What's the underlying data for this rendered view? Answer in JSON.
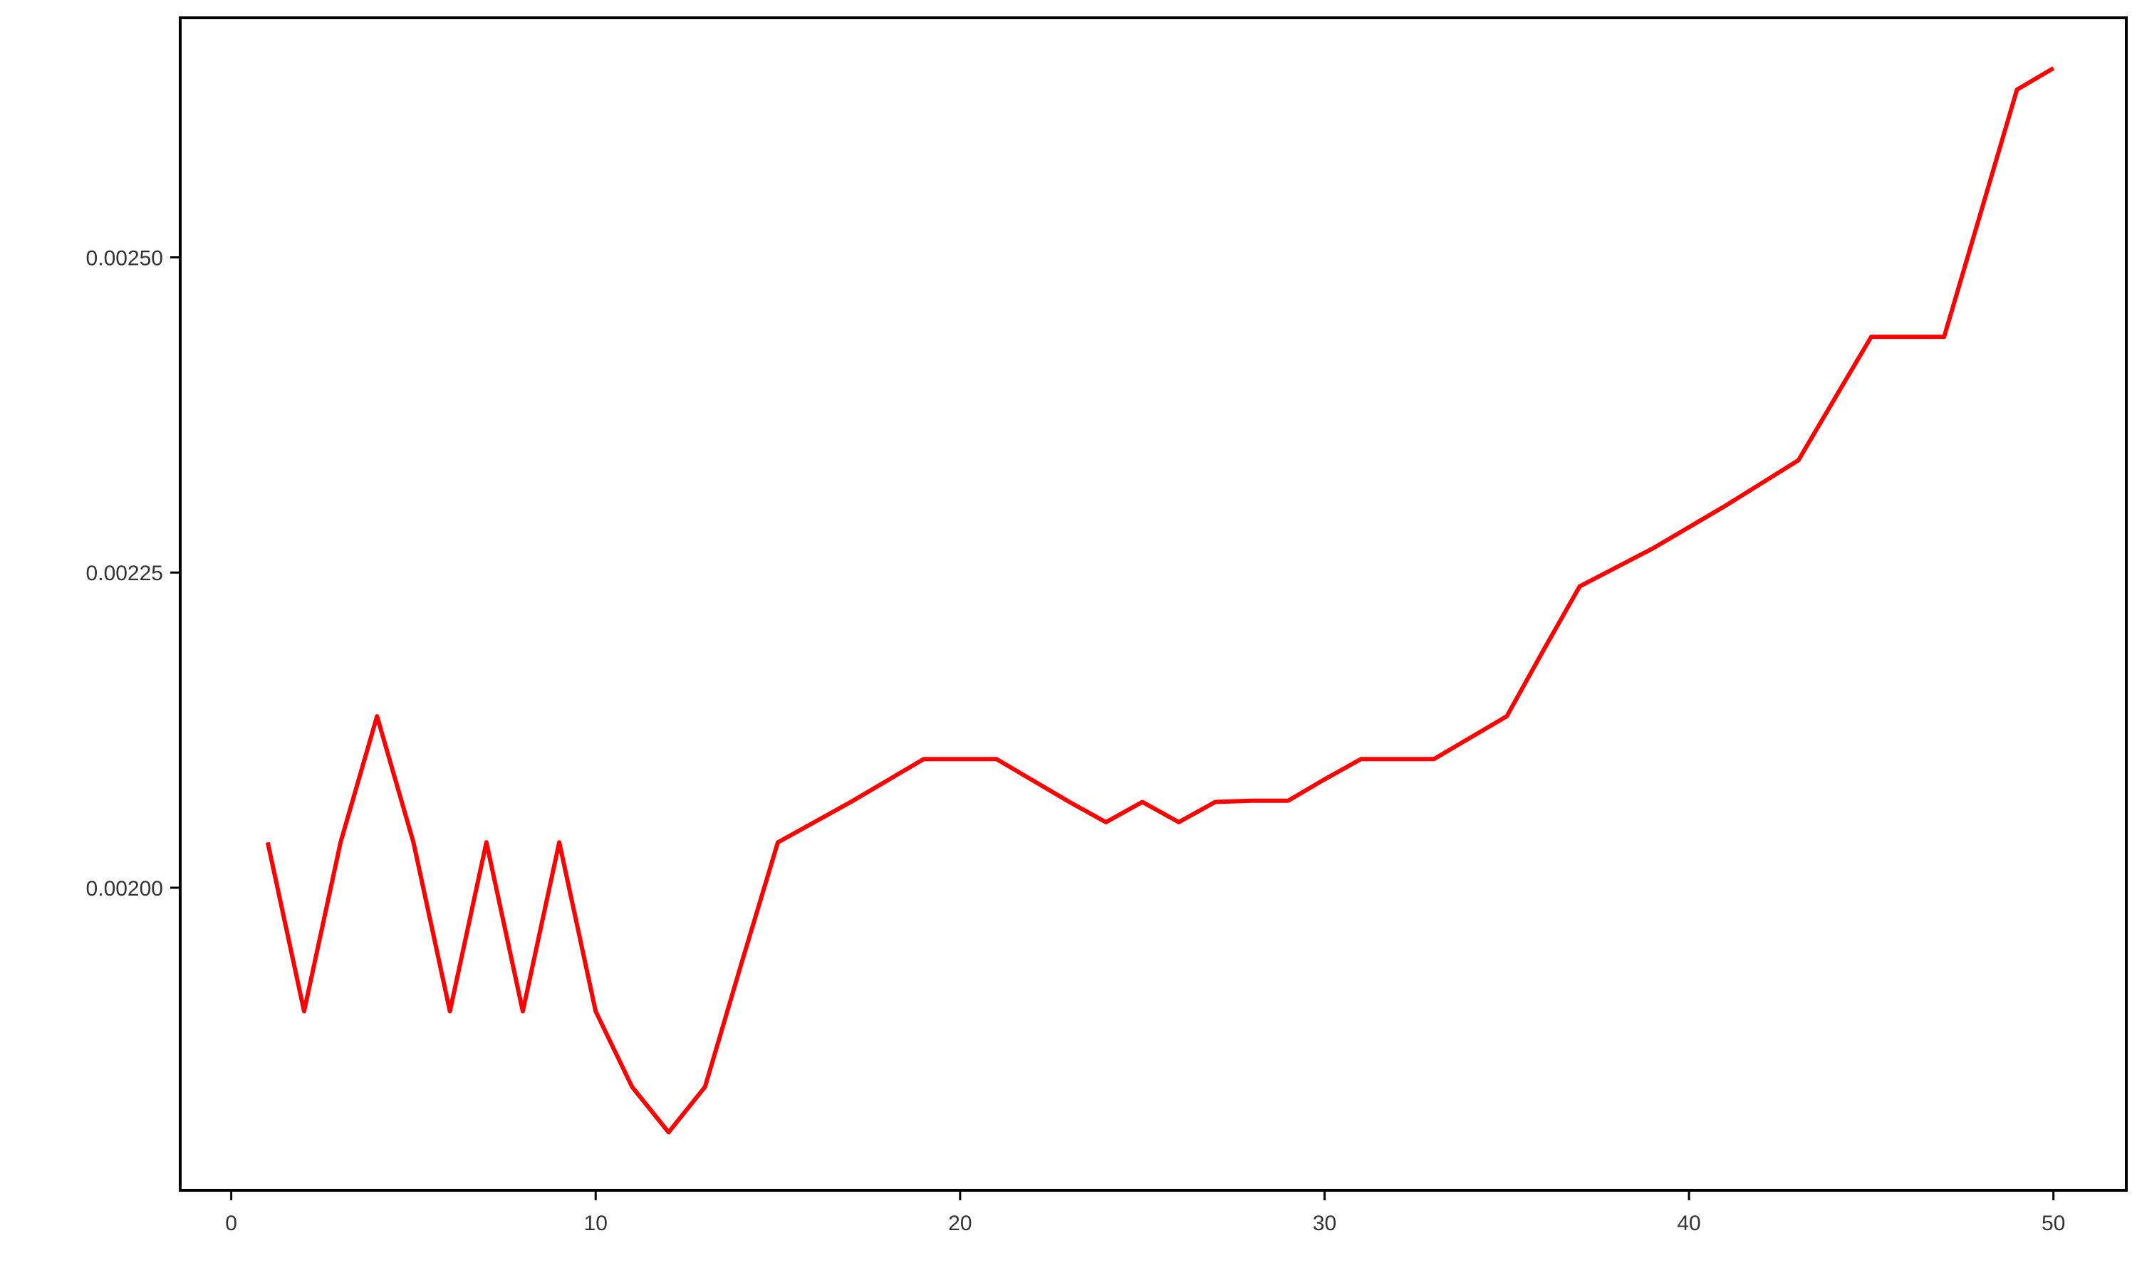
{
  "chart_data": {
    "type": "line",
    "title": "",
    "xlabel": "",
    "ylabel": "",
    "xlim": [
      -1.4,
      52
    ],
    "ylim": [
      0.00176,
      0.00269
    ],
    "x_ticks": [
      0,
      10,
      20,
      30,
      40,
      50
    ],
    "x_tick_labels": [
      "0",
      "10",
      "20",
      "30",
      "40",
      "50"
    ],
    "y_ticks": [
      0.002,
      0.00225,
      0.0025
    ],
    "y_tick_labels": [
      "0.00200",
      "0.00225",
      "0.00250"
    ],
    "grid": false,
    "legend": "none",
    "series": [
      {
        "color": "#ff0000",
        "x": [
          1,
          2,
          3,
          4,
          5,
          6,
          7,
          8,
          9,
          10,
          11,
          12,
          13,
          14,
          15,
          16,
          17,
          18,
          19,
          20,
          21,
          22,
          23,
          24,
          25,
          26,
          27,
          28,
          29,
          30,
          31,
          32,
          33,
          34,
          35,
          36,
          37,
          38,
          39,
          40,
          41,
          42,
          43,
          44,
          45,
          46,
          47,
          48,
          49,
          50
        ],
        "y": [
          0.002036,
          0.001902,
          0.002036,
          0.002136,
          0.002036,
          0.001902,
          0.002036,
          0.001902,
          0.002036,
          0.001902,
          0.001842,
          0.001806,
          0.001842,
          0.00194,
          0.002036,
          0.002052,
          0.002068,
          0.002085,
          0.002102,
          0.002102,
          0.002102,
          0.002085,
          0.002068,
          0.002052,
          0.002068,
          0.002052,
          0.002068,
          0.002069,
          0.002069,
          0.002086,
          0.002102,
          0.002102,
          0.002102,
          0.002119,
          0.002136,
          0.002188,
          0.002239,
          0.002254,
          0.002269,
          0.002286,
          0.002303,
          0.002321,
          0.002339,
          0.002388,
          0.002437,
          0.002437,
          0.002437,
          0.002535,
          0.002633,
          0.00265
        ]
      }
    ]
  }
}
